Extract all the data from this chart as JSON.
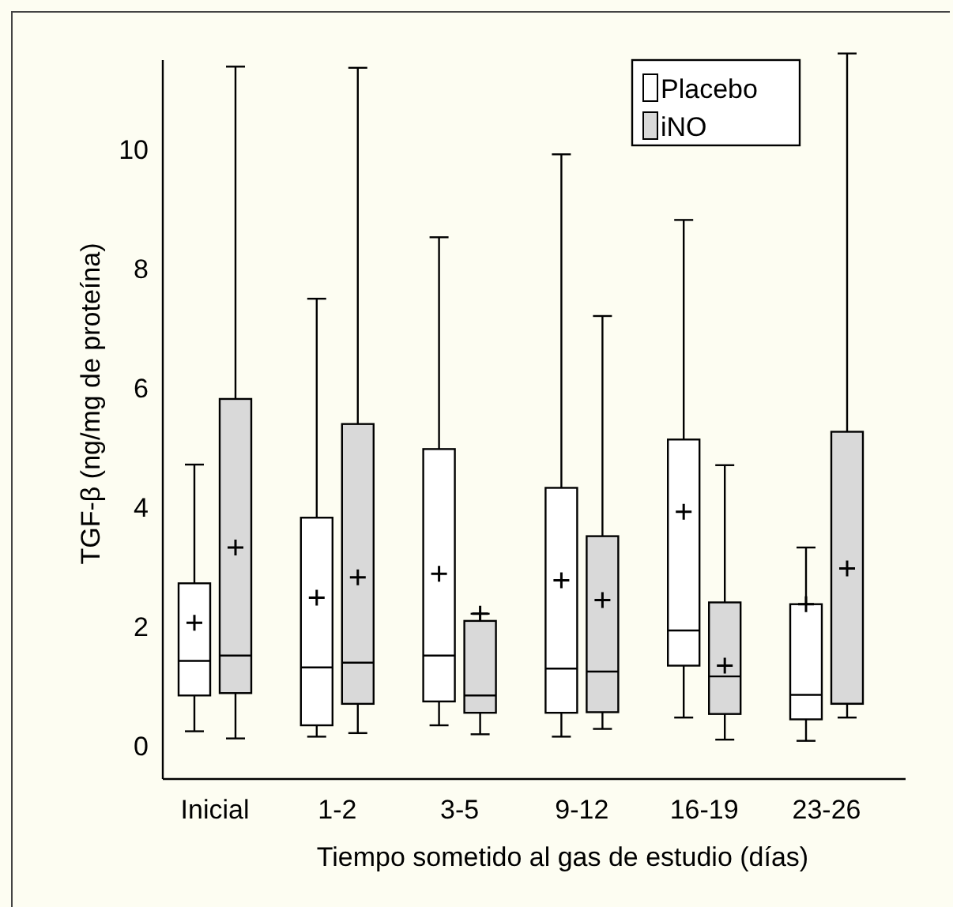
{
  "chart_data": {
    "type": "box",
    "ylabel": "TGF-β (ng/mg de proteína)",
    "xlabel": "Tiempo sometido al gas de estudio (días)",
    "categories": [
      "Inicial",
      "1-2",
      "3-5",
      "9-12",
      "16-19",
      "23-26"
    ],
    "ylim": [
      -0.55,
      11.5
    ],
    "yticks": [
      0,
      2,
      4,
      6,
      8,
      10
    ],
    "grid": false,
    "legend": "top right",
    "series": [
      {
        "name": "Placebo",
        "color": "#ffffff",
        "boxes": [
          {
            "low": 0.25,
            "q1": 0.85,
            "median": 1.43,
            "q3": 2.73,
            "high": 4.72,
            "mean": 2.07
          },
          {
            "low": 0.16,
            "q1": 0.35,
            "median": 1.32,
            "q3": 3.83,
            "high": 7.5,
            "mean": 2.49
          },
          {
            "low": 0.35,
            "q1": 0.75,
            "median": 1.52,
            "q3": 4.98,
            "high": 8.53,
            "mean": 2.89
          },
          {
            "low": 0.16,
            "q1": 0.56,
            "median": 1.3,
            "q3": 4.33,
            "high": 9.92,
            "mean": 2.78
          },
          {
            "low": 0.48,
            "q1": 1.35,
            "median": 1.94,
            "q3": 5.14,
            "high": 8.82,
            "mean": 3.93
          },
          {
            "low": 0.09,
            "q1": 0.45,
            "median": 0.86,
            "q3": 2.38,
            "high": 3.33,
            "mean": 2.38
          }
        ]
      },
      {
        "name": "iNO",
        "color": "#d9d9d9",
        "boxes": [
          {
            "low": 0.13,
            "q1": 0.89,
            "median": 1.52,
            "q3": 5.82,
            "high": 11.39,
            "mean": 3.33
          },
          {
            "low": 0.22,
            "q1": 0.71,
            "median": 1.4,
            "q3": 5.4,
            "high": 11.37,
            "mean": 2.83
          },
          {
            "low": 0.2,
            "q1": 0.56,
            "median": 0.85,
            "q3": 2.1,
            "high": 2.22,
            "mean": 2.22
          },
          {
            "low": 0.29,
            "q1": 0.57,
            "median": 1.25,
            "q3": 3.52,
            "high": 7.21,
            "mean": 2.45
          },
          {
            "low": 0.11,
            "q1": 0.54,
            "median": 1.17,
            "q3": 2.41,
            "high": 4.71,
            "mean": 1.35
          },
          {
            "low": 0.48,
            "q1": 0.71,
            "median": 0.71,
            "q3": 5.27,
            "high": 11.61,
            "mean": 2.98
          }
        ]
      }
    ]
  }
}
